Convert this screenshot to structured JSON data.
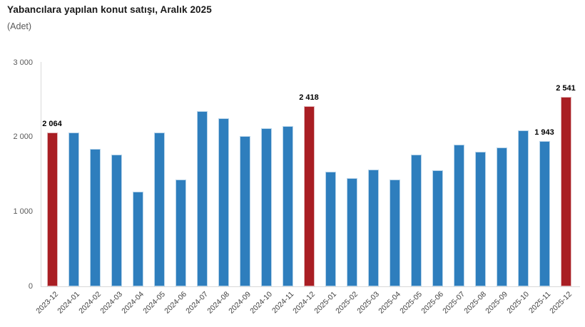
{
  "chart_data": {
    "type": "bar",
    "title": "Yabancılara yapılan konut satışı, Aralık 2025",
    "unit_label": "(Adet)",
    "xlabel": "",
    "ylabel": "",
    "grid": false,
    "legend": false,
    "categories": [
      "2023-12",
      "2024-01",
      "2024-02",
      "2024-03",
      "2024-04",
      "2024-05",
      "2024-06",
      "2024-07",
      "2024-08",
      "2024-09",
      "2024-10",
      "2024-11",
      "2024-12",
      "2025-01",
      "2025-02",
      "2025-03",
      "2025-04",
      "2025-05",
      "2025-06",
      "2025-07",
      "2025-08",
      "2025-09",
      "2025-10",
      "2025-11",
      "2025-12"
    ],
    "values": [
      2064,
      2062,
      1840,
      1766,
      1266,
      2060,
      1431,
      2344,
      2252,
      2017,
      2116,
      2147,
      2418,
      1537,
      1447,
      1565,
      1431,
      1763,
      1559,
      1902,
      1804,
      1857,
      2092,
      1943,
      2541
    ],
    "highlight_categories": [
      "2023-12",
      "2024-12",
      "2025-12"
    ],
    "data_labels": {
      "2023-12": "2 064",
      "2024-12": "2 418",
      "2025-11": "1 943",
      "2025-12": "2 541"
    },
    "y_axis": {
      "min": 0,
      "max": 3000,
      "ticks": [
        {
          "value": 0,
          "label": "0"
        },
        {
          "value": 1000,
          "label": "1 000"
        },
        {
          "value": 2000,
          "label": "2 000"
        },
        {
          "value": 3000,
          "label": "3 000"
        }
      ]
    },
    "colors": {
      "bar": "#2E7EBD",
      "bar_edge": "#B7D4EA",
      "highlight": "#A91E23",
      "highlight_edge": "#E0B4B6",
      "axis_line": "#d9d9d9"
    }
  }
}
